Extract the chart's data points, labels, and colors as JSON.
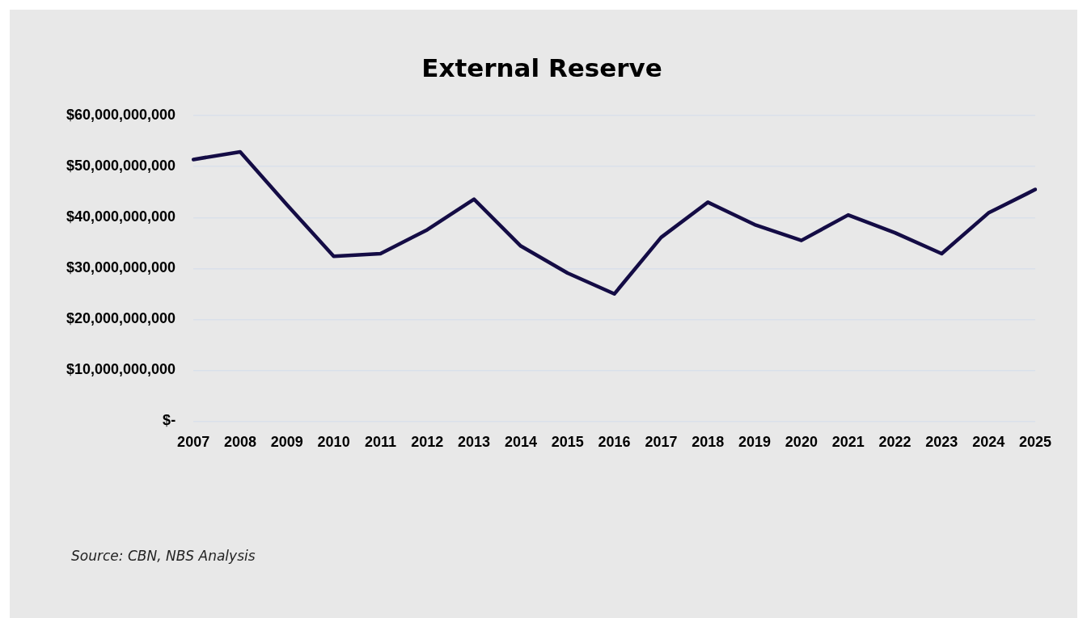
{
  "chart_data": {
    "type": "line",
    "title": "External Reserve",
    "categories": [
      "2007",
      "2008",
      "2009",
      "2010",
      "2011",
      "2012",
      "2013",
      "2014",
      "2015",
      "2016",
      "2017",
      "2018",
      "2019",
      "2020",
      "2021",
      "2022",
      "2023",
      "2024",
      "2025"
    ],
    "series": [
      {
        "color": "#140c45",
        "values": [
          51400000000,
          52900000000,
          42500000000,
          32400000000,
          32900000000,
          37600000000,
          43600000000,
          34400000000,
          29100000000,
          25000000000,
          36100000000,
          43000000000,
          38600000000,
          35500000000,
          40500000000,
          37000000000,
          32900000000,
          40900000000,
          45500000000
        ]
      }
    ],
    "ylim": [
      0,
      60000000000
    ],
    "yticks": [
      {
        "value": 0,
        "label": "$-"
      },
      {
        "value": 10000000000,
        "label": "$10,000,000,000"
      },
      {
        "value": 20000000000,
        "label": "$20,000,000,000"
      },
      {
        "value": 30000000000,
        "label": "$30,000,000,000"
      },
      {
        "value": 40000000000,
        "label": "$40,000,000,000"
      },
      {
        "value": 50000000000,
        "label": "$50,000,000,000"
      },
      {
        "value": 60000000000,
        "label": "$60,000,000,000"
      }
    ],
    "grid": "y",
    "legend": false,
    "marker": "none",
    "line_style": "solid",
    "annotations": [
      "Source: CBN, NBS Analysis"
    ]
  }
}
